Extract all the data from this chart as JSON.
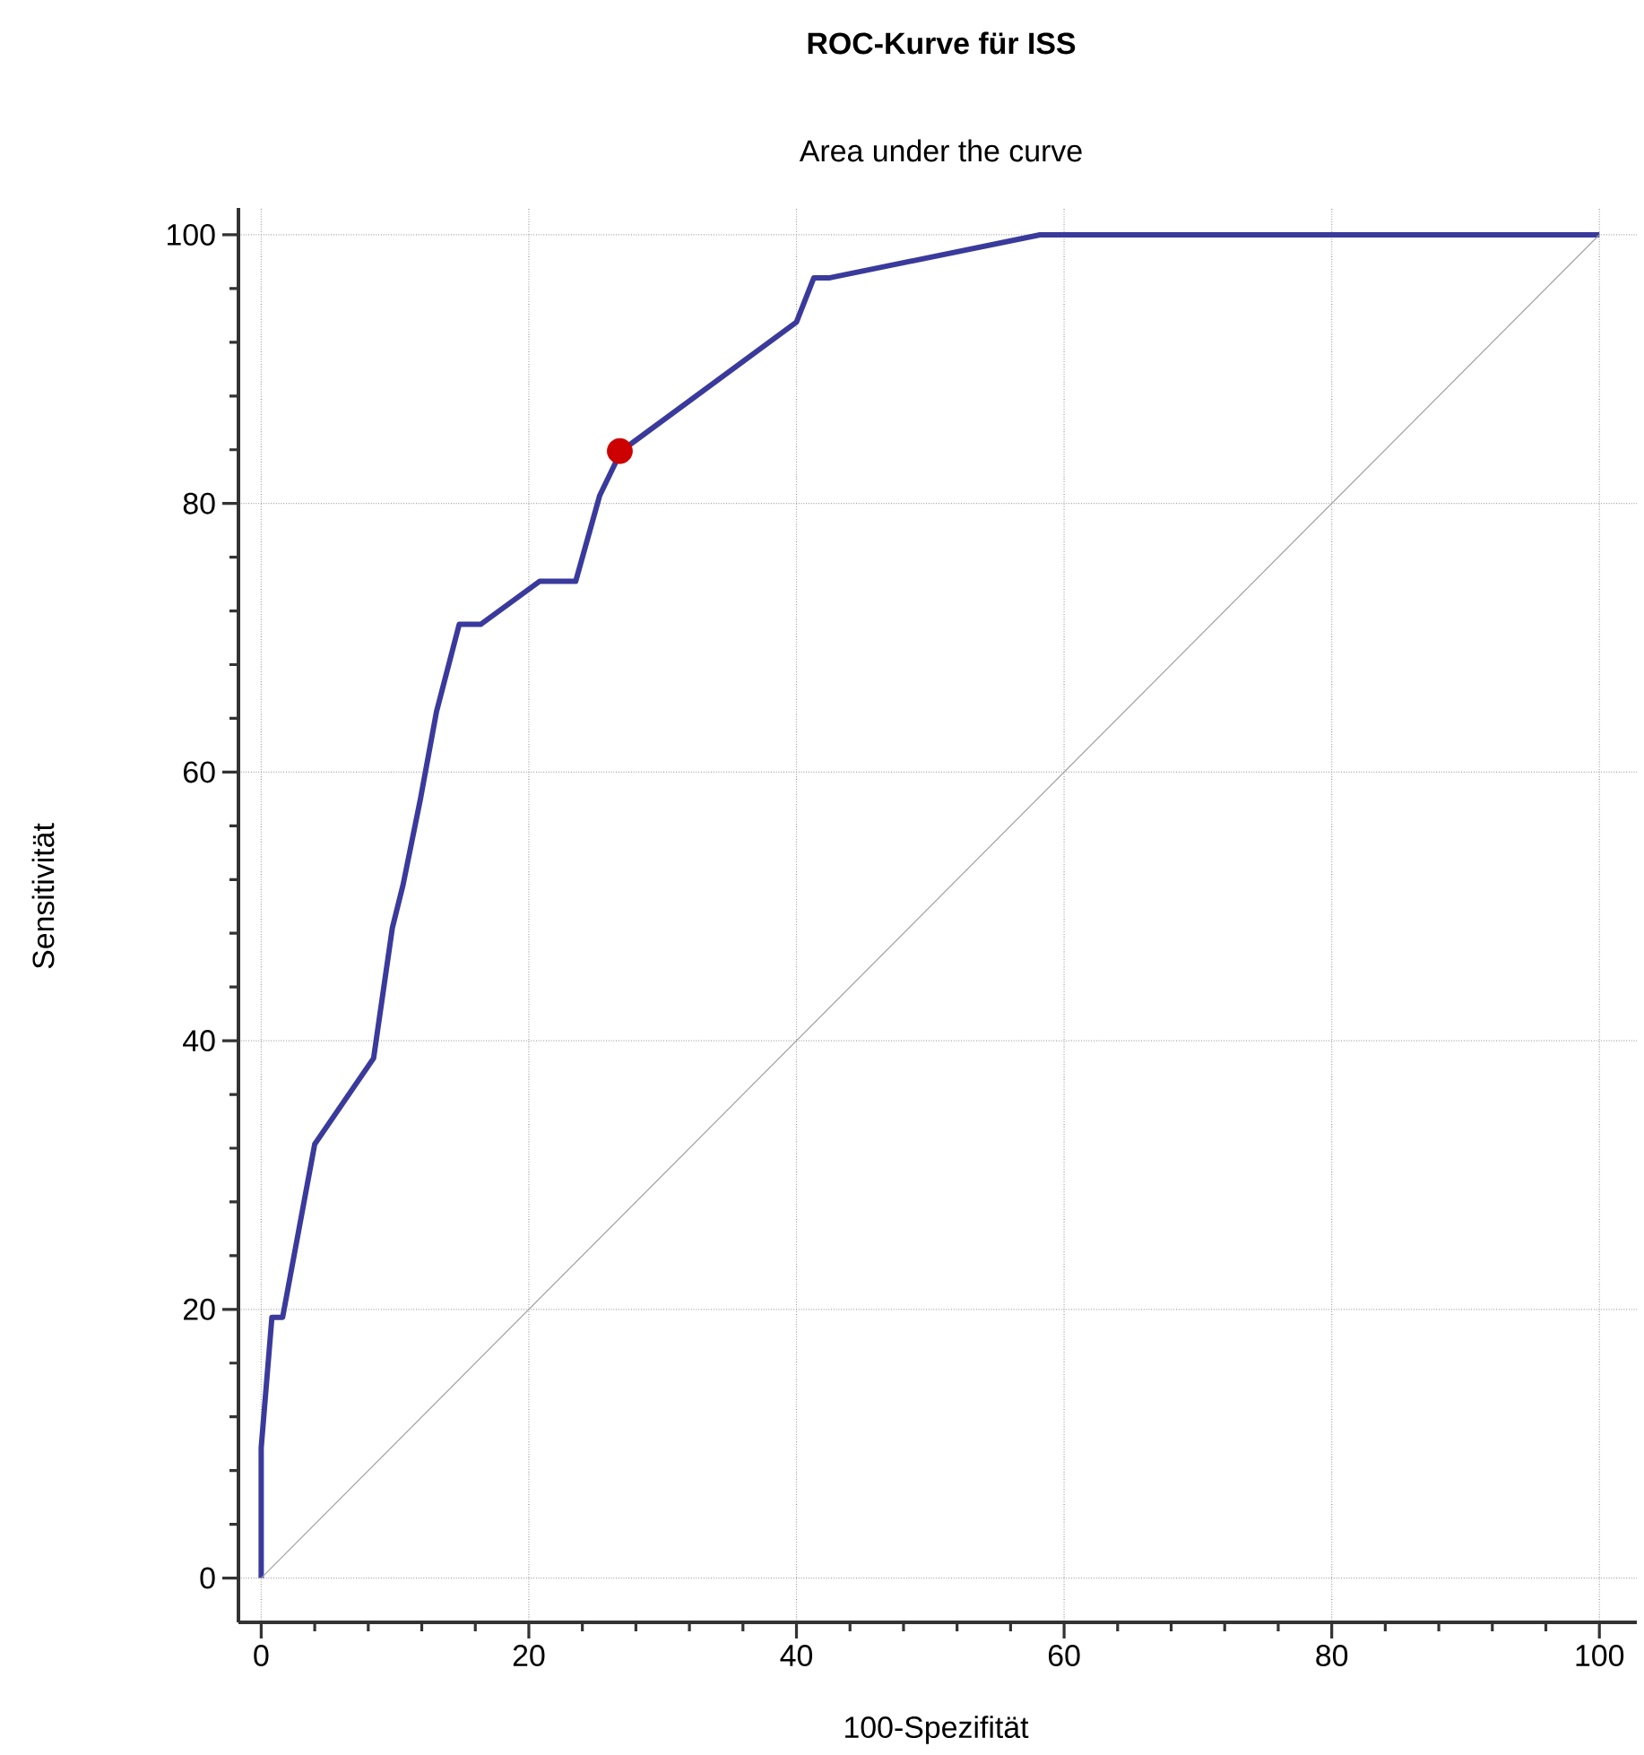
{
  "chart_data": {
    "type": "line",
    "title": "ROC-Kurve für ISS",
    "subtitle": "Area under the curve",
    "xlabel": "100-Spezifität",
    "ylabel": "Sensitivität",
    "xlim": [
      -1.7,
      102.8
    ],
    "ylim": [
      -3.3,
      102
    ],
    "xticks": [
      0,
      20,
      40,
      60,
      80,
      100
    ],
    "yticks": [
      0,
      20,
      40,
      60,
      80,
      100
    ],
    "grid": true,
    "series": [
      {
        "color": "#3a3a9c",
        "marker": "none",
        "x": [
          0,
          0,
          0.8,
          1.6,
          4.0,
          8.4,
          9.8,
          10.6,
          11.9,
          13.1,
          14.8,
          16.4,
          20.8,
          23.5,
          25.3,
          26.9,
          40,
          41.3,
          42.5,
          58.2,
          100
        ],
        "values": [
          0,
          9.7,
          19.4,
          19.4,
          32.3,
          38.7,
          48.4,
          51.6,
          58,
          64.5,
          71,
          71,
          74.2,
          74.2,
          80.6,
          83.9,
          93.5,
          96.8,
          96.8,
          100,
          100
        ]
      },
      {
        "color": "#a0a0a0",
        "marker": "none",
        "x": [
          0,
          100
        ],
        "values": [
          0,
          100
        ]
      },
      {
        "type": "scatter",
        "color": "#cc0000",
        "marker": "circle",
        "x": [
          26.8
        ],
        "values": [
          83.9
        ]
      }
    ]
  }
}
